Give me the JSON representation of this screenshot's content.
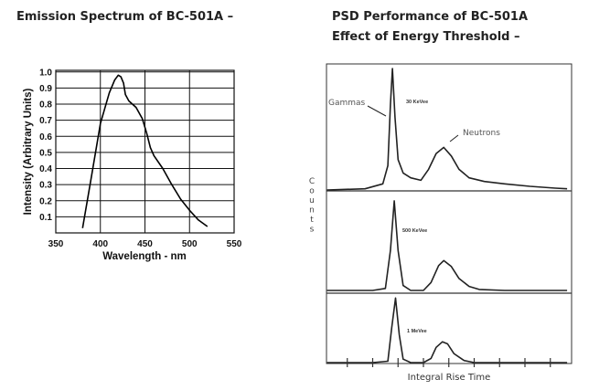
{
  "chart_data": [
    {
      "type": "line",
      "title": "Emission Spectrum of BC-501A –",
      "xlabel": "Wavelength - nm",
      "ylabel": "Intensity (Arbitrary Units)",
      "xlim": [
        350,
        550
      ],
      "ylim": [
        0,
        1.0
      ],
      "xticks": [
        350,
        400,
        450,
        500,
        550
      ],
      "xtick_labels": [
        "350",
        "400",
        "450",
        "500",
        "550"
      ],
      "yticks": [
        0.1,
        0.2,
        0.3,
        0.4,
        0.5,
        0.6,
        0.7,
        0.8,
        0.9,
        1.0
      ],
      "ytick_labels": [
        "0.1",
        "0.2",
        "0.3",
        "0.4",
        "0.5",
        "0.6",
        "0.7",
        "0.8",
        "0.9",
        "1.0"
      ],
      "grid": true,
      "series": [
        {
          "x": [
            380,
            390,
            400,
            410,
            416,
            420,
            423,
            426,
            428,
            432,
            440,
            447,
            452,
            456,
            460,
            470,
            480,
            490,
            500,
            510,
            520
          ],
          "y": [
            0.03,
            0.35,
            0.68,
            0.87,
            0.95,
            0.98,
            0.97,
            0.93,
            0.86,
            0.82,
            0.78,
            0.71,
            0.62,
            0.53,
            0.48,
            0.4,
            0.3,
            0.21,
            0.14,
            0.08,
            0.04
          ]
        }
      ]
    },
    {
      "type": "line",
      "title": "PSD Performance of BC-501A",
      "subtitle": "Effect of Energy Threshold –",
      "xlabel": "Integral Rise Time",
      "ylabel": "Counts",
      "xticks": [
        1,
        2,
        3,
        4,
        5,
        6,
        7,
        8,
        9
      ],
      "grid": false,
      "annotations": {
        "gammas": "Gammas",
        "neutrons": "Neutrons"
      },
      "panels": [
        {
          "label": "30 KeVee",
          "x": [
            0.2,
            1.7,
            2.4,
            2.6,
            2.7,
            2.78,
            2.88,
            3.0,
            3.2,
            3.5,
            3.9,
            4.2,
            4.5,
            4.8,
            5.1,
            5.4,
            5.8,
            6.4,
            7.2,
            8.2,
            9.2,
            9.66
          ],
          "y": [
            0,
            0.01,
            0.05,
            0.2,
            0.7,
            1.0,
            0.6,
            0.25,
            0.14,
            0.1,
            0.08,
            0.17,
            0.3,
            0.35,
            0.28,
            0.17,
            0.1,
            0.07,
            0.05,
            0.03,
            0.015,
            0.01
          ]
        },
        {
          "label": "500 KeVee",
          "x": [
            0.2,
            2.0,
            2.5,
            2.7,
            2.85,
            3.0,
            3.2,
            3.5,
            4.0,
            4.3,
            4.6,
            4.8,
            5.1,
            5.4,
            5.8,
            6.2,
            7.2,
            9.66
          ],
          "y": [
            0,
            0,
            0.02,
            0.4,
            0.9,
            0.4,
            0.05,
            0,
            0,
            0.08,
            0.25,
            0.3,
            0.24,
            0.12,
            0.04,
            0.01,
            0,
            0
          ]
        },
        {
          "label": "1 MeVee",
          "x": [
            0.2,
            2.0,
            2.6,
            2.75,
            2.9,
            3.05,
            3.2,
            3.5,
            4.0,
            4.3,
            4.5,
            4.75,
            4.95,
            5.2,
            5.6,
            6.0,
            9.66
          ],
          "y": [
            0,
            0,
            0.02,
            0.5,
            0.93,
            0.4,
            0.05,
            0,
            0,
            0.06,
            0.22,
            0.3,
            0.27,
            0.13,
            0.03,
            0,
            0
          ]
        }
      ]
    }
  ]
}
